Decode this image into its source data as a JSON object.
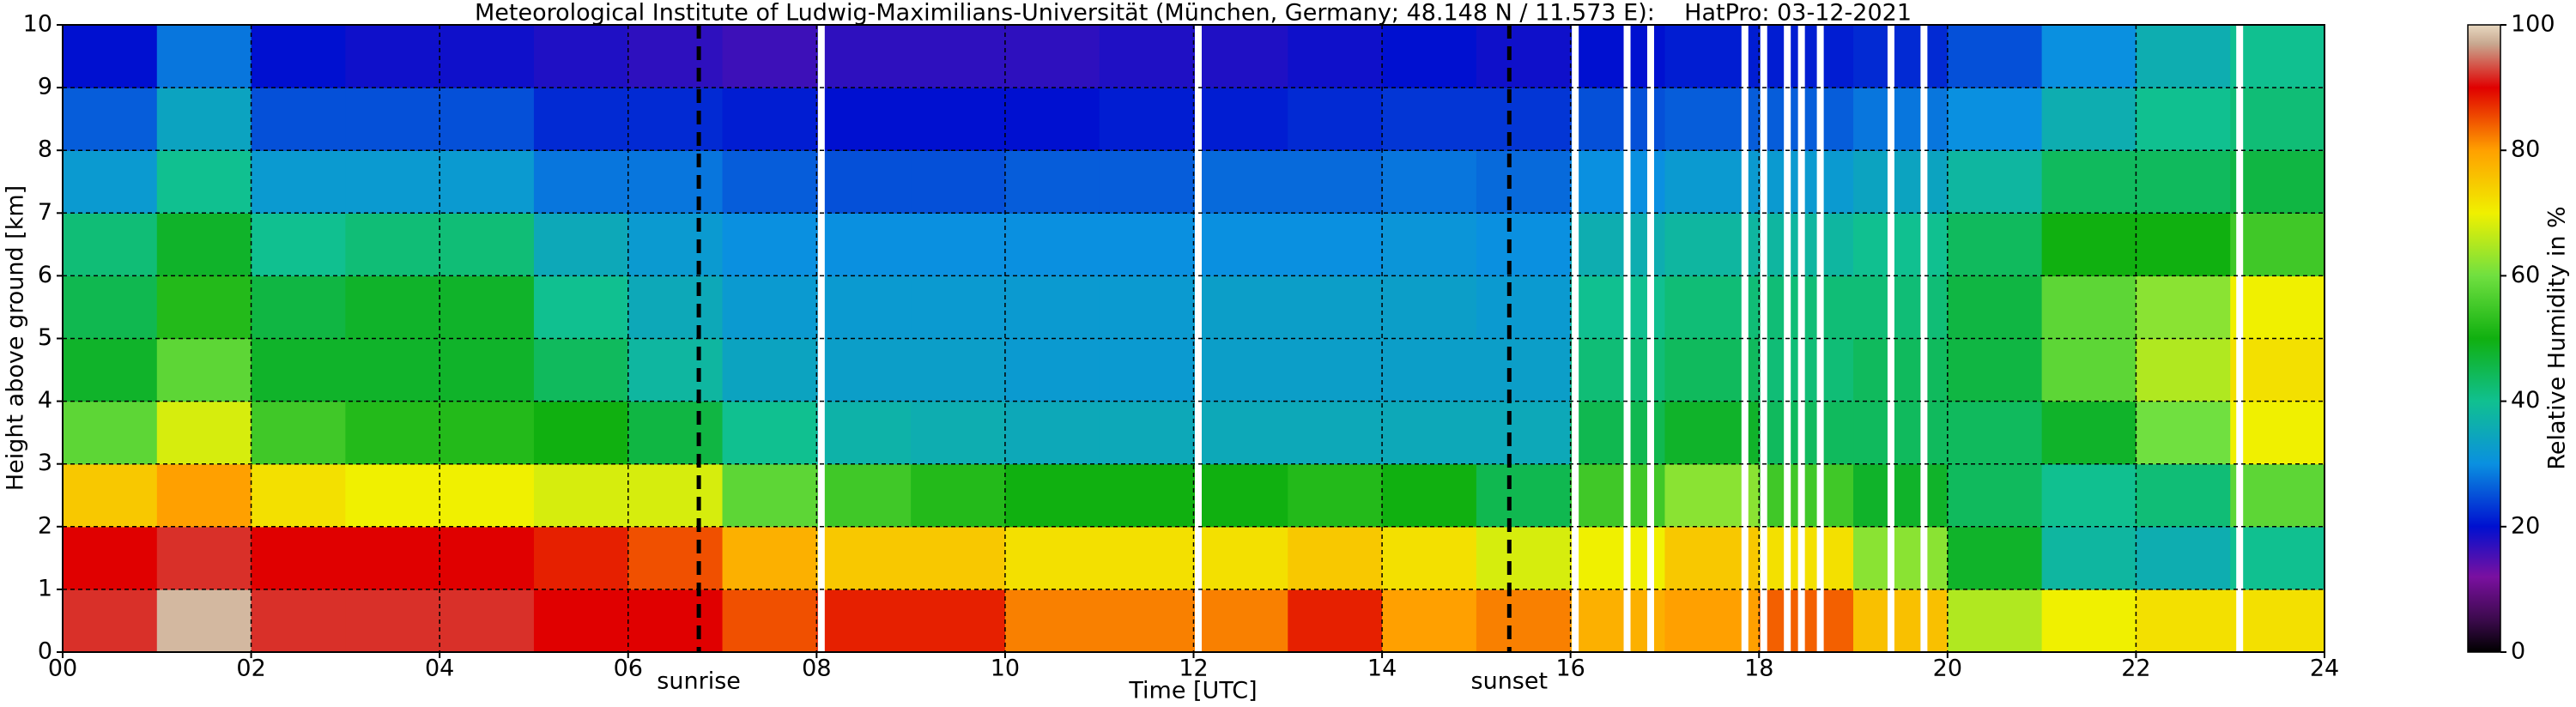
{
  "chart_data": {
    "type": "heatmap",
    "title": "Meteorological Institute of Ludwig-Maximilians-Universität (München, Germany; 48.148 N / 11.573 E):    HatPro: 03-12-2021",
    "x_label": "Time [UTC]",
    "y_label": "Height above ground [km]",
    "colorbar_label": "Relative Humidity in %",
    "x_bins": [
      0,
      1,
      2,
      3,
      4,
      5,
      6,
      7,
      8,
      9,
      10,
      11,
      12,
      13,
      14,
      15,
      16,
      17,
      18,
      19,
      20,
      21,
      22,
      23,
      24
    ],
    "y_bins": [
      0,
      1,
      2,
      3,
      4,
      5,
      6,
      7,
      8,
      9,
      10
    ],
    "values": [
      [
        92,
        90,
        75,
        58,
        48,
        45,
        42,
        32,
        26,
        20
      ],
      [
        98,
        92,
        80,
        68,
        58,
        52,
        48,
        40,
        34,
        28
      ],
      [
        92,
        90,
        72,
        55,
        48,
        46,
        40,
        32,
        25,
        20
      ],
      [
        92,
        90,
        70,
        52,
        48,
        48,
        42,
        32,
        25,
        19
      ],
      [
        92,
        90,
        70,
        52,
        48,
        48,
        42,
        32,
        25,
        19
      ],
      [
        90,
        88,
        68,
        50,
        44,
        40,
        35,
        28,
        22,
        18
      ],
      [
        90,
        85,
        68,
        46,
        38,
        35,
        32,
        28,
        22,
        17
      ],
      [
        85,
        78,
        58,
        40,
        34,
        32,
        30,
        26,
        21,
        16
      ],
      [
        88,
        75,
        55,
        37,
        33,
        32,
        30,
        25,
        20,
        17
      ],
      [
        88,
        75,
        52,
        36,
        33,
        32,
        30,
        25,
        20,
        17
      ],
      [
        82,
        72,
        50,
        35,
        32,
        32,
        30,
        26,
        20,
        17
      ],
      [
        82,
        72,
        50,
        35,
        32,
        32,
        30,
        26,
        21,
        18
      ],
      [
        82,
        72,
        50,
        35,
        33,
        33,
        30,
        27,
        21,
        18
      ],
      [
        88,
        75,
        52,
        35,
        33,
        33,
        30,
        27,
        22,
        19
      ],
      [
        80,
        72,
        50,
        35,
        33,
        33,
        31,
        28,
        23,
        20
      ],
      [
        82,
        68,
        45,
        35,
        33,
        32,
        30,
        27,
        23,
        19
      ],
      [
        78,
        70,
        55,
        45,
        42,
        40,
        36,
        30,
        25,
        20
      ],
      [
        80,
        75,
        62,
        48,
        44,
        42,
        38,
        32,
        26,
        21
      ],
      [
        84,
        72,
        55,
        44,
        42,
        42,
        38,
        32,
        26,
        21
      ],
      [
        76,
        62,
        48,
        44,
        44,
        42,
        40,
        34,
        28,
        22
      ],
      [
        65,
        48,
        44,
        44,
        46,
        46,
        44,
        38,
        30,
        25
      ],
      [
        70,
        38,
        40,
        48,
        58,
        58,
        50,
        44,
        36,
        30
      ],
      [
        72,
        36,
        42,
        60,
        65,
        62,
        50,
        44,
        40,
        36
      ],
      [
        72,
        40,
        58,
        70,
        72,
        70,
        55,
        46,
        42,
        40
      ]
    ],
    "data_gaps_x": [
      8.05,
      12.05,
      16.05,
      16.6,
      16.85,
      17.85,
      18.05,
      18.3,
      18.45,
      18.65,
      19.4,
      19.75,
      23.1
    ],
    "annotations": [
      {
        "text": "sunrise",
        "x": 6.75
      },
      {
        "text": "sunset",
        "x": 15.35
      }
    ],
    "xlim": [
      0,
      24
    ],
    "ylim": [
      0,
      10
    ],
    "xticks": [
      {
        "value": 0,
        "label": "00"
      },
      {
        "value": 2,
        "label": "02"
      },
      {
        "value": 4,
        "label": "04"
      },
      {
        "value": 6,
        "label": "06"
      },
      {
        "value": 8,
        "label": "08"
      },
      {
        "value": 10,
        "label": "10"
      },
      {
        "value": 12,
        "label": "12"
      },
      {
        "value": 14,
        "label": "14"
      },
      {
        "value": 16,
        "label": "16"
      },
      {
        "value": 18,
        "label": "18"
      },
      {
        "value": 20,
        "label": "20"
      },
      {
        "value": 22,
        "label": "22"
      },
      {
        "value": 24,
        "label": "24"
      }
    ],
    "yticks": [
      0,
      1,
      2,
      3,
      4,
      5,
      6,
      7,
      8,
      9,
      10
    ],
    "clim": [
      0,
      100
    ],
    "cticks": [
      0,
      20,
      40,
      60,
      80,
      100
    ],
    "colorscale": [
      [
        0,
        "#000000"
      ],
      [
        5,
        "#3a0a4a"
      ],
      [
        12,
        "#7a10a0"
      ],
      [
        20,
        "#0010d0"
      ],
      [
        30,
        "#0a90e0"
      ],
      [
        40,
        "#10c090"
      ],
      [
        50,
        "#10b010"
      ],
      [
        60,
        "#70e040"
      ],
      [
        70,
        "#f0f000"
      ],
      [
        80,
        "#ffa000"
      ],
      [
        90,
        "#e00000"
      ],
      [
        97,
        "#c8a890"
      ],
      [
        100,
        "#e8d8c0"
      ]
    ],
    "grid": true
  }
}
